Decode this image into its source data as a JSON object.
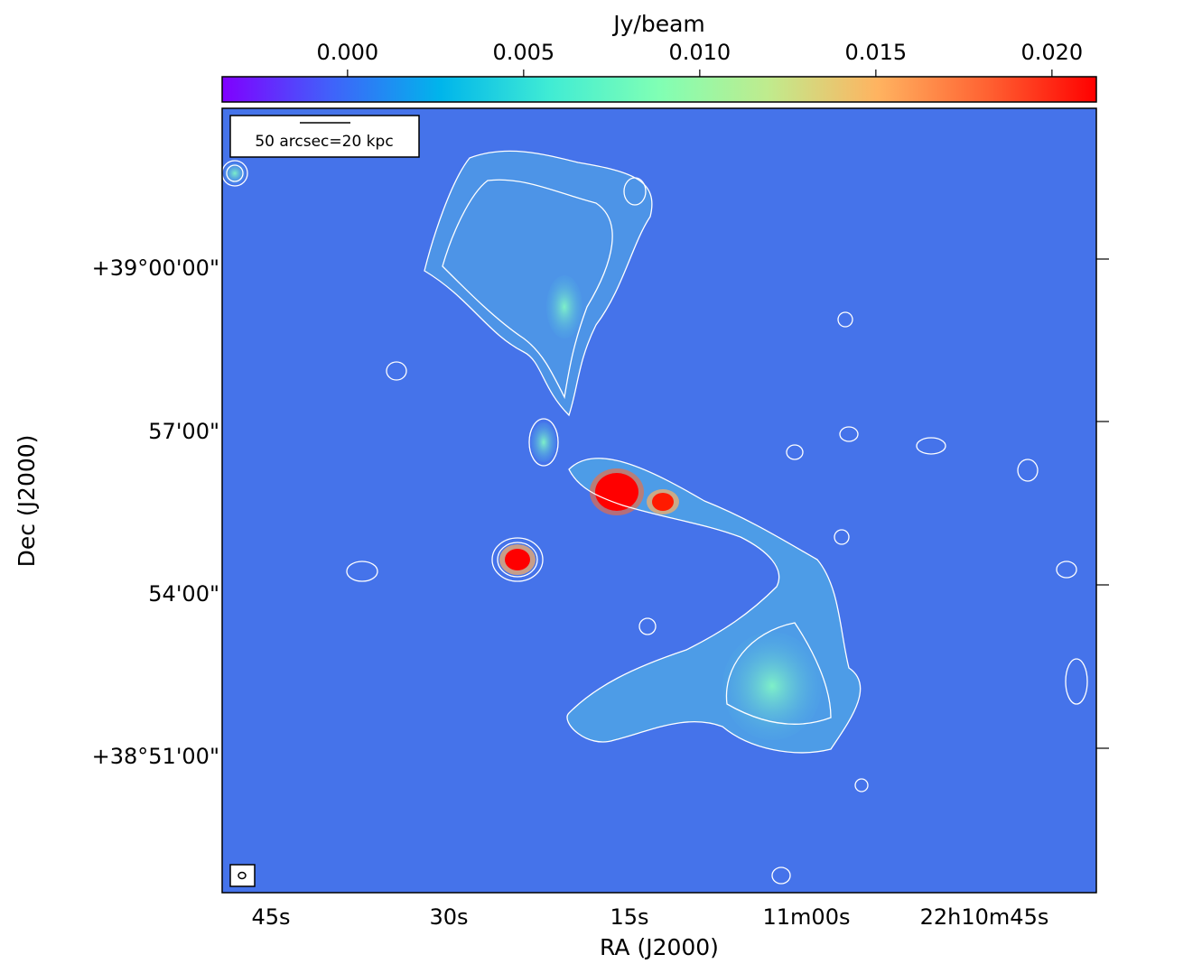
{
  "chart_data": {
    "type": "image",
    "colorbar_label": "Jy/beam",
    "xlabel": "RA (J2000)",
    "ylabel": "Dec (J2000)",
    "scale_bar_label": "50 arcsec=20 kpc",
    "colormap": "rainbow",
    "clim": [
      -0.00356,
      0.02126
    ],
    "cticks": [
      {
        "value": 0,
        "label": "0.000"
      },
      {
        "value": 0.005,
        "label": "0.005"
      },
      {
        "value": 0.01,
        "label": "0.010"
      },
      {
        "value": 0.015,
        "label": "0.015"
      },
      {
        "value": 0.02,
        "label": "0.020"
      }
    ],
    "xtick_labels": [
      "45s",
      "30s",
      "15s",
      "11m00s",
      "22h10m45s"
    ],
    "ytick_labels": [
      "+39°00'00\"",
      "57'00\"",
      "54'00\"",
      "+38°51'00\""
    ]
  }
}
